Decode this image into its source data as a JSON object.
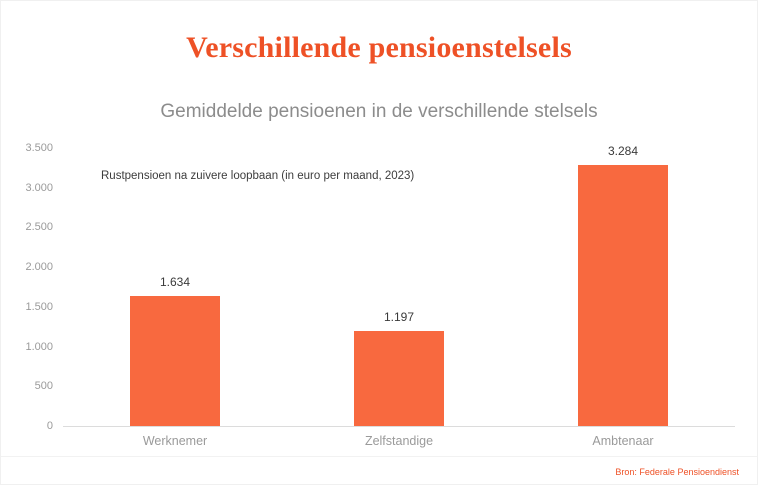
{
  "colors": {
    "accent": "#ee5126",
    "bar": "#f8693f",
    "subtitle_gray": "#8c8c8c",
    "axis_gray": "#9a9a9a",
    "value_dark": "#3a3a3a"
  },
  "chart_data": {
    "type": "bar",
    "title": "Verschillende pensioenstelsels",
    "subtitle": "Gemiddelde pensioenen in de verschillende stelsels",
    "annotation": "Rustpensioen na zuivere loopbaan (in euro per maand, 2023)",
    "source": "Bron: Federale Pensioendienst",
    "categories": [
      "Werknemer",
      "Zelfstandige",
      "Ambtenaar"
    ],
    "values": [
      1634,
      1197,
      3284
    ],
    "value_labels": [
      "1.634",
      "1.197",
      "3.284"
    ],
    "ylim": [
      0,
      3500
    ],
    "yticks": [
      "3.500",
      "3.000",
      "2.500",
      "2.000",
      "1.500",
      "1.000",
      "500",
      "0"
    ],
    "grid": false,
    "legend": false
  }
}
